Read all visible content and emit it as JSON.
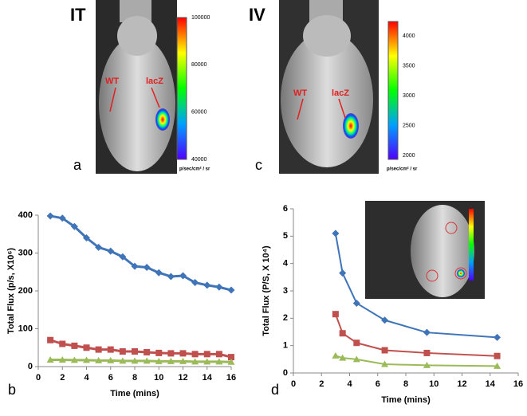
{
  "panels": [
    {
      "title": "IT",
      "letter": "a",
      "labels": [
        "WT",
        "lacZ"
      ],
      "colorbar_ticks": [
        100000,
        80000,
        60000,
        40000
      ],
      "colorbar_unit": "p/sec/cm² / sr"
    },
    {
      "title": "IV",
      "letter": "c",
      "labels": [
        "WT",
        "lacZ"
      ],
      "colorbar_ticks": [
        4000,
        3500,
        3000,
        2500,
        2000
      ],
      "colorbar_unit": "p/sec/cm² / sr"
    }
  ],
  "chart_data": [
    {
      "type": "line",
      "panel_label": "b",
      "x_label": "Time (mins)",
      "y_label": "Total Flux (p/s, X10⁶)",
      "xlim": [
        0,
        16
      ],
      "xticks": [
        0,
        2,
        4,
        6,
        8,
        10,
        12,
        14,
        16
      ],
      "ylim": [
        0,
        400
      ],
      "yticks": [
        0,
        100,
        200,
        300,
        400
      ],
      "x": [
        1,
        2,
        3,
        4,
        5,
        6,
        7,
        8,
        9,
        10,
        11,
        12,
        13,
        14,
        15,
        16
      ],
      "series": [
        {
          "color": "#3f74b8",
          "marker": "diamond",
          "values": [
            398,
            392,
            370,
            340,
            315,
            305,
            290,
            265,
            262,
            248,
            238,
            240,
            222,
            215,
            210,
            202
          ]
        },
        {
          "color": "#c0504d",
          "marker": "square",
          "values": [
            70,
            60,
            55,
            50,
            45,
            45,
            40,
            40,
            38,
            36,
            35,
            35,
            33,
            33,
            33,
            25
          ]
        },
        {
          "color": "#9bbb59",
          "marker": "triangle",
          "values": [
            18,
            18,
            17,
            17,
            16,
            16,
            15,
            15,
            15,
            14,
            14,
            14,
            13,
            13,
            13,
            12
          ]
        }
      ]
    },
    {
      "type": "line",
      "panel_label": "d",
      "x_label": "Time (mins)",
      "y_label": "Total Flux (P/S, X 10⁴)",
      "xlim": [
        0,
        16
      ],
      "xticks": [
        0,
        2,
        4,
        6,
        8,
        10,
        12,
        14,
        16
      ],
      "ylim": [
        0,
        6
      ],
      "yticks": [
        0,
        1,
        2,
        3,
        4,
        5,
        6
      ],
      "x": [
        3,
        3.5,
        4.5,
        6.5,
        9.5,
        14.5
      ],
      "series": [
        {
          "color": "#3f74b8",
          "marker": "diamond",
          "values": [
            5.1,
            3.65,
            2.55,
            1.93,
            1.48,
            1.3
          ]
        },
        {
          "color": "#c0504d",
          "marker": "square",
          "values": [
            2.15,
            1.45,
            1.1,
            0.83,
            0.73,
            0.62
          ]
        },
        {
          "color": "#9bbb59",
          "marker": "triangle",
          "values": [
            0.63,
            0.55,
            0.5,
            0.32,
            0.28,
            0.25
          ]
        }
      ]
    }
  ]
}
